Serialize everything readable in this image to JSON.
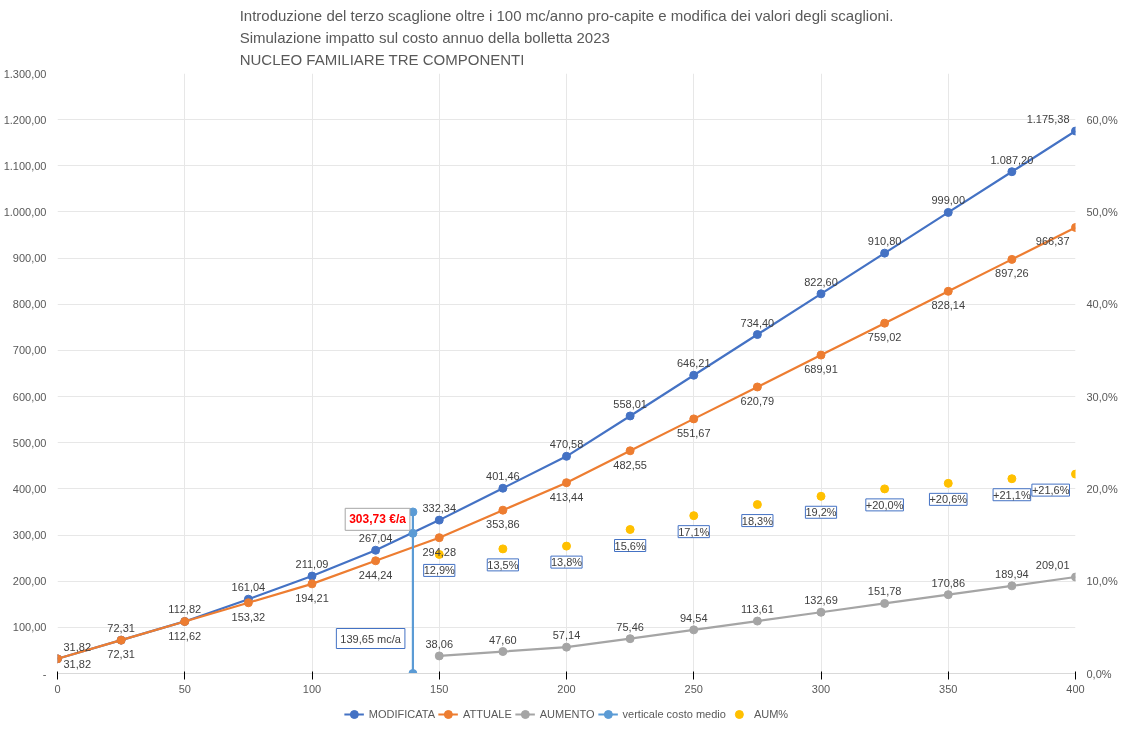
{
  "chart_data": {
    "type": "line",
    "title": "Introduzione del terzo scaglione oltre i 100 mc/anno pro-capite e modifica dei valori degli scaglioni.\nSimulazione impatto sul costo annuo della bolletta 2023\nNUCLEO FAMILIARE TRE COMPONENTI",
    "x": [
      0,
      25,
      50,
      75,
      100,
      125,
      150,
      175,
      200,
      225,
      250,
      275,
      300,
      325,
      350,
      375,
      400
    ],
    "xlim": [
      0,
      400
    ],
    "xticks": [
      0,
      50,
      100,
      150,
      200,
      250,
      300,
      350,
      400
    ],
    "ylim": [
      0,
      1300
    ],
    "yticks": [
      {
        "value": 0,
        "label": "-"
      },
      {
        "value": 100,
        "label": "100,00"
      },
      {
        "value": 200,
        "label": "200,00"
      },
      {
        "value": 300,
        "label": "300,00"
      },
      {
        "value": 400,
        "label": "400,00"
      },
      {
        "value": 500,
        "label": "500,00"
      },
      {
        "value": 600,
        "label": "600,00"
      },
      {
        "value": 700,
        "label": "700,00"
      },
      {
        "value": 800,
        "label": "800,00"
      },
      {
        "value": 900,
        "label": "900,00"
      },
      {
        "value": 1000,
        "label": "1.000,00"
      },
      {
        "value": 1100,
        "label": "1.100,00"
      },
      {
        "value": 1200,
        "label": "1.200,00"
      },
      {
        "value": 1300,
        "label": "1.300,00"
      }
    ],
    "y2lim": [
      0,
      65
    ],
    "y2ticks": [
      {
        "value": 0,
        "label": "0,0%"
      },
      {
        "value": 10,
        "label": "10,0%"
      },
      {
        "value": 20,
        "label": "20,0%"
      },
      {
        "value": 30,
        "label": "30,0%"
      },
      {
        "value": 40,
        "label": "40,0%"
      },
      {
        "value": 50,
        "label": "50,0%"
      },
      {
        "value": 60,
        "label": "60,0%"
      }
    ],
    "grid": true,
    "legend": "bottom",
    "marker": "circle",
    "line_style": "solid",
    "series": [
      {
        "name": "MODIFICATA",
        "color": "#4472c4",
        "values": [
          31.82,
          72.31,
          112.82,
          161.04,
          211.09,
          267.04,
          332.34,
          401.46,
          470.58,
          558.01,
          646.21,
          734.4,
          822.6,
          910.8,
          999.0,
          1087.2,
          1175.38
        ],
        "value_labels": [
          "31,82",
          "72,31",
          "112,82",
          "161,04",
          "211,09",
          "267,04",
          "332,34",
          "401,46",
          "470,58",
          "558,01",
          "646,21",
          "734,40",
          "822,60",
          "910,80",
          "999,00",
          "1.087,20",
          "1.175,38"
        ]
      },
      {
        "name": "ATTUALE",
        "color": "#ed7d31",
        "values": [
          31.82,
          72.31,
          112.62,
          153.32,
          194.21,
          244.24,
          294.28,
          353.86,
          413.44,
          482.55,
          551.67,
          620.79,
          689.91,
          759.02,
          828.14,
          897.26,
          966.37
        ],
        "value_labels": [
          "31,82",
          "72,31",
          "112,62",
          "153,32",
          "194,21",
          "244,24",
          "294,28",
          "353,86",
          "413,44",
          "482,55",
          "551,67",
          "620,79",
          "689,91",
          "759,02",
          "828,14",
          "897,26",
          "966,37"
        ]
      },
      {
        "name": "AUMENTO",
        "color": "#a5a5a5",
        "x": [
          150,
          175,
          200,
          225,
          250,
          275,
          300,
          325,
          350,
          375,
          400
        ],
        "values": [
          38.06,
          47.6,
          57.14,
          75.46,
          94.54,
          113.61,
          132.69,
          151.78,
          170.86,
          189.94,
          209.01
        ],
        "value_labels": [
          "38,06",
          "47,60",
          "57,14",
          "75,46",
          "94,54",
          "113,61",
          "132,69",
          "151,78",
          "170,86",
          "189,94",
          "209,01"
        ]
      },
      {
        "name": "verticale costo medio",
        "color": "#5b9bd5",
        "x": [
          139.65,
          139.65,
          139.65
        ],
        "values": [
          0,
          303.73,
          350
        ]
      },
      {
        "name": "AUM%",
        "type": "scatter",
        "axis": "y2",
        "color": "#ffc000",
        "x": [
          150,
          175,
          200,
          225,
          250,
          275,
          300,
          325,
          350,
          375,
          400
        ],
        "values": [
          12.9,
          13.5,
          13.8,
          15.6,
          17.1,
          18.3,
          19.2,
          20.0,
          20.6,
          21.1,
          21.6
        ],
        "value_labels": [
          "12,9%",
          "13,5%",
          "13,8%",
          "15,6%",
          "17,1%",
          "18,3%",
          "19,2%",
          "+20,0%",
          "+20,6%",
          "+21,1%",
          "+21,6%"
        ]
      }
    ],
    "annotations": [
      {
        "text": "303,73 €/a",
        "x": 139.65,
        "y": 303.73
      },
      {
        "text": "139,65 mc/a",
        "x": 139.65,
        "y": 0
      }
    ]
  }
}
